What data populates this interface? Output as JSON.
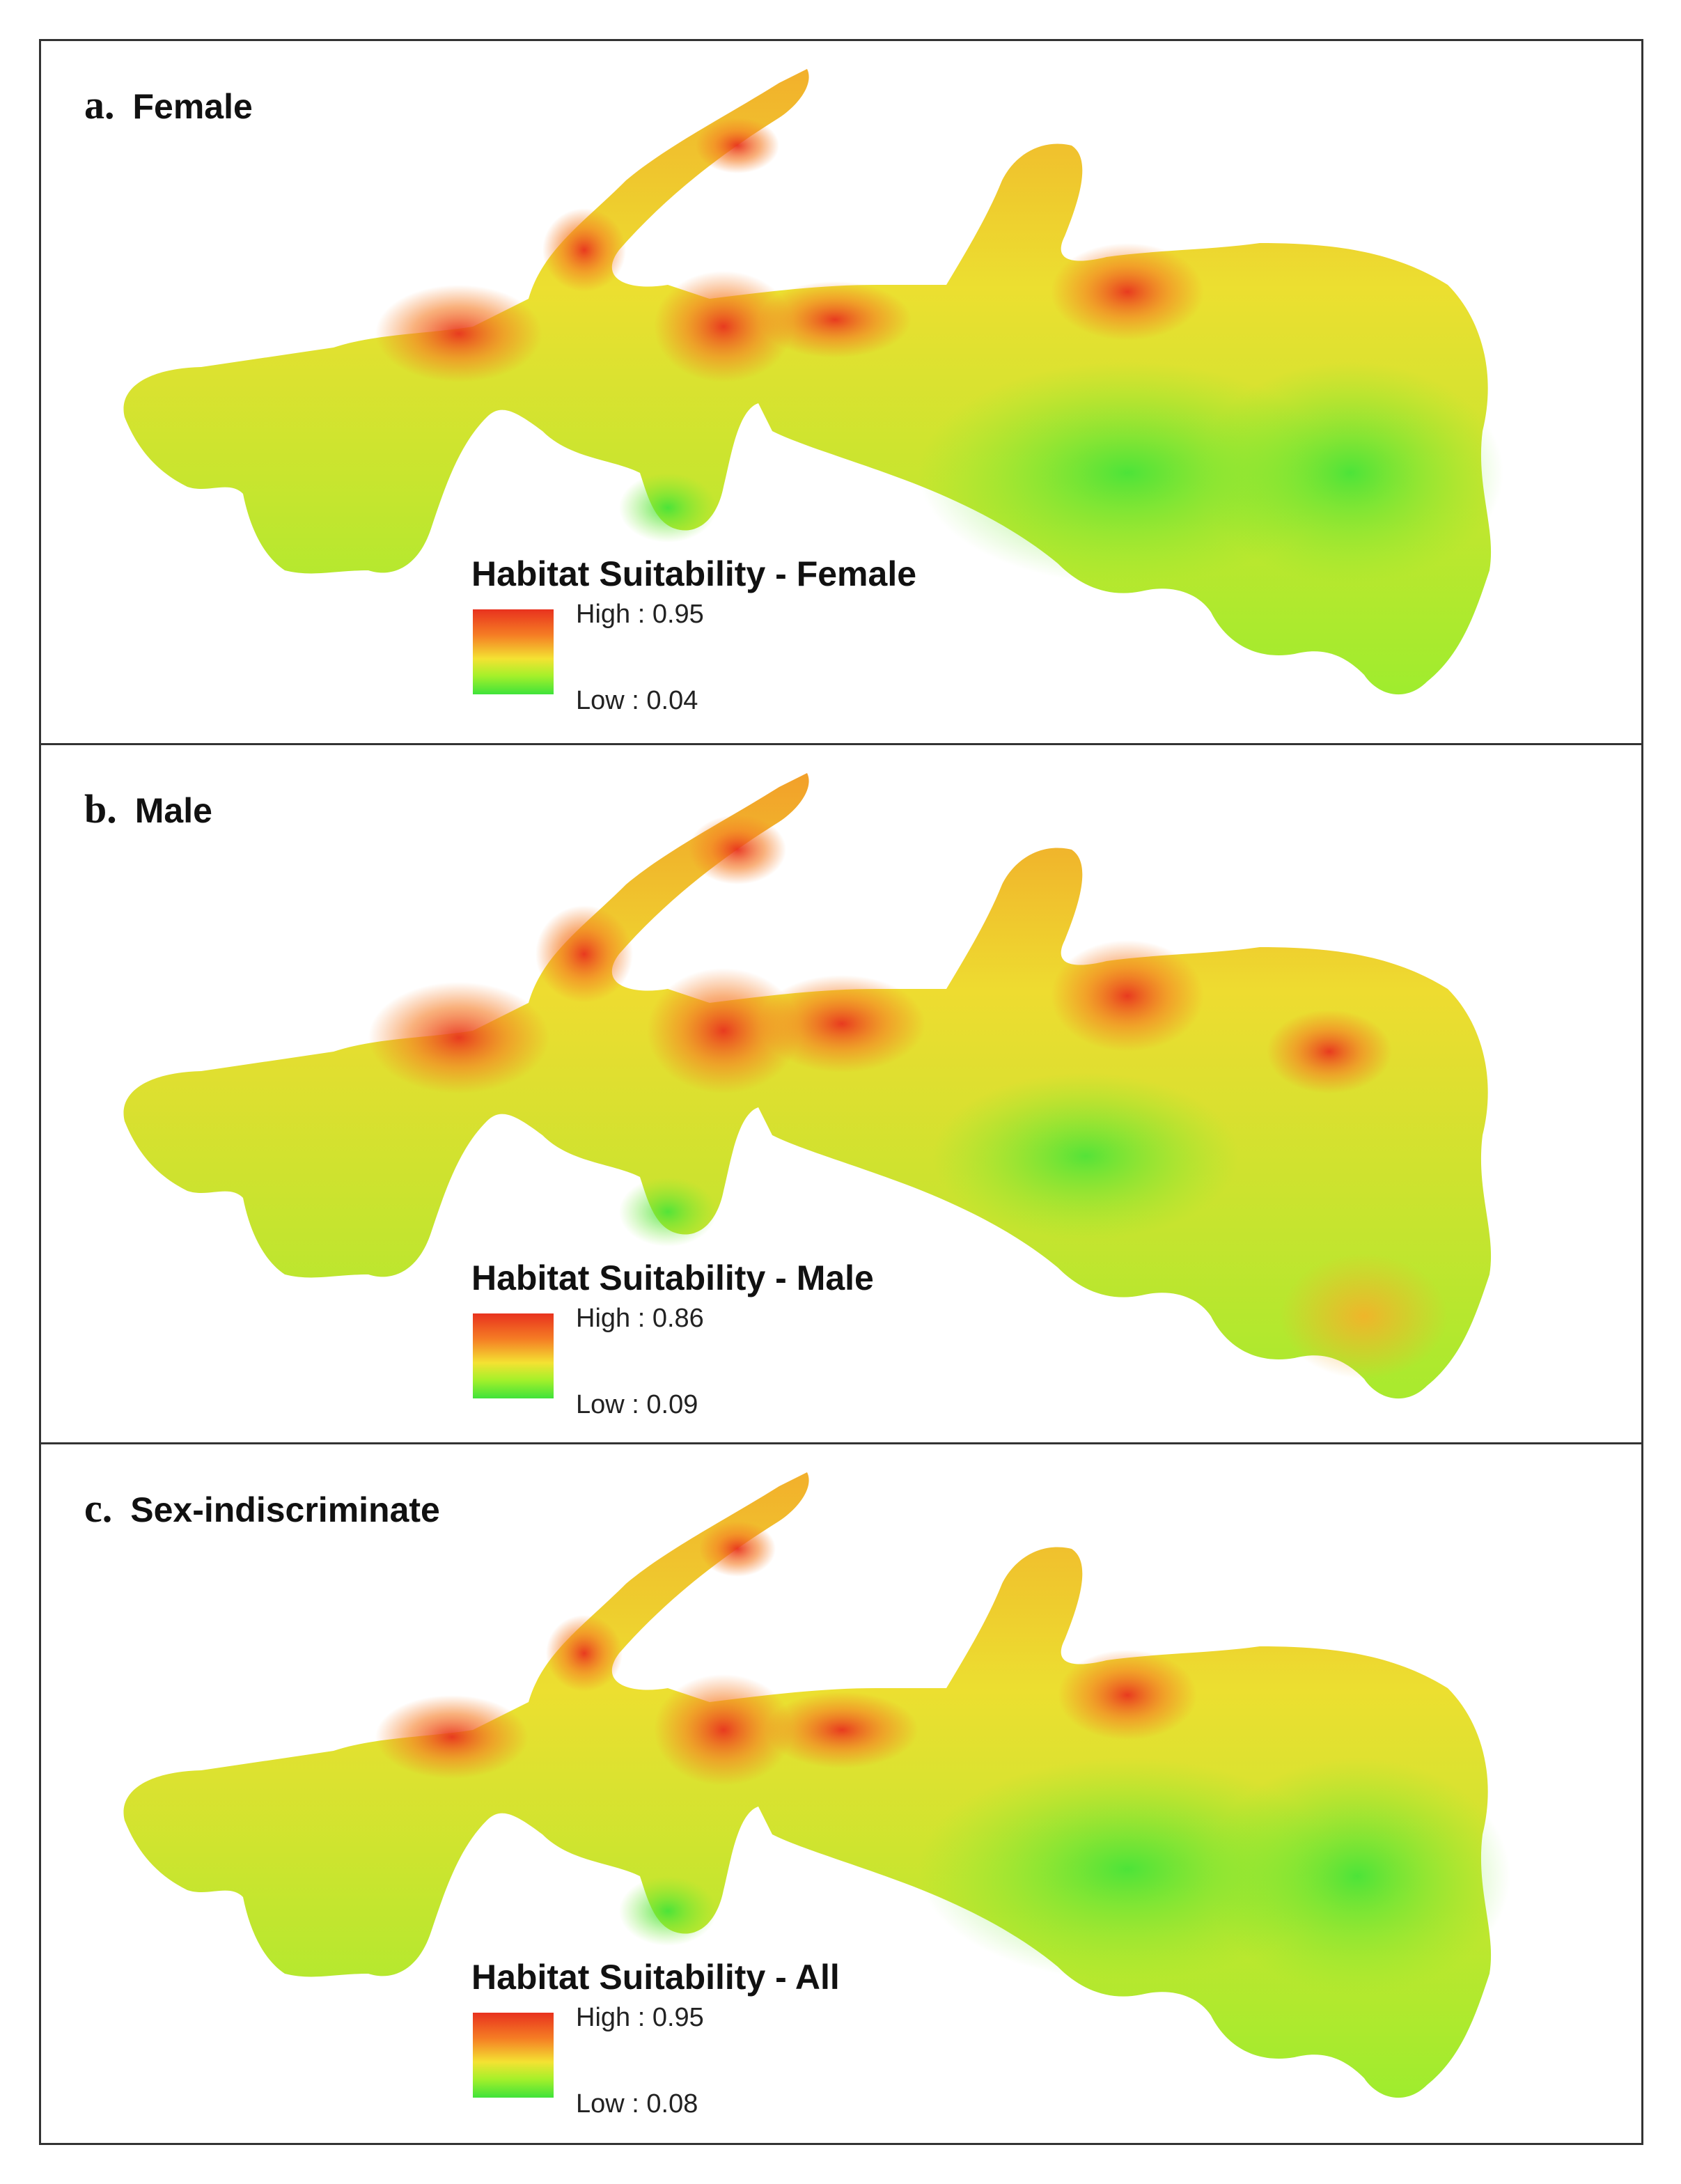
{
  "figure": {
    "panels": [
      {
        "letter": "a.",
        "title": "Female",
        "legend": {
          "title": "Habitat Suitability - Female",
          "high": "High : 0.95",
          "low": "Low : 0.04"
        }
      },
      {
        "letter": "b.",
        "title": "Male",
        "legend": {
          "title": "Habitat Suitability - Male",
          "high": "High : 0.86",
          "low": "Low : 0.09"
        }
      },
      {
        "letter": "c.",
        "title": "Sex-indiscriminate",
        "legend": {
          "title": "Habitat Suitability - All",
          "high": "High : 0.95",
          "low": "Low : 0.08"
        }
      }
    ],
    "colors": {
      "high": "#e8321e",
      "mid_high": "#f57c24",
      "mid": "#f4e232",
      "mid_low": "#a6f02a",
      "low": "#3fe33a",
      "border": "#333333"
    }
  }
}
